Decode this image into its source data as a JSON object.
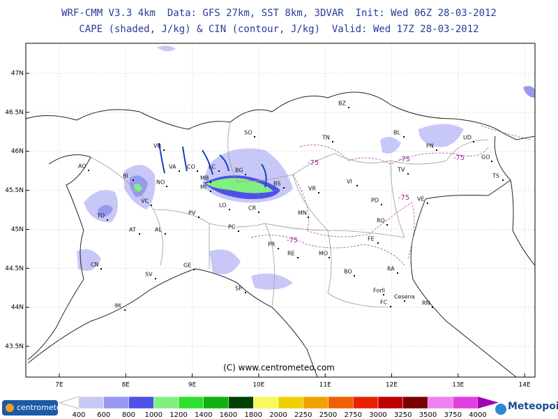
{
  "header": {
    "line1": "WRF-CMM V3.3 4km  Data: GFS 27km, SST 8km, 3DVAR  Init: Wed 06Z 28-03-2012",
    "line2": "CAPE (shaded, J/kg) & CIN (contour, J/kg)  Valid: Wed 17Z 28-03-2012"
  },
  "map": {
    "lat_ticks": [
      {
        "value": 47,
        "label": "47N"
      },
      {
        "value": 46.5,
        "label": "46.5N"
      },
      {
        "value": 46,
        "label": "46N"
      },
      {
        "value": 45.5,
        "label": "45.5N"
      },
      {
        "value": 45,
        "label": "45N"
      },
      {
        "value": 44.5,
        "label": "44.5N"
      },
      {
        "value": 44,
        "label": "44N"
      },
      {
        "value": 43.5,
        "label": "43.5N"
      }
    ],
    "lon_ticks": [
      {
        "value": 7,
        "label": "7E"
      },
      {
        "value": 8,
        "label": "8E"
      },
      {
        "value": 9,
        "label": "9E"
      },
      {
        "value": 10,
        "label": "10E"
      },
      {
        "value": 11,
        "label": "11E"
      },
      {
        "value": 12,
        "label": "12E"
      },
      {
        "value": 13,
        "label": "13E"
      },
      {
        "value": 14,
        "label": "14E"
      }
    ],
    "cities": [
      "AO",
      "BI",
      "VB",
      "VA",
      "CO",
      "LC",
      "SO",
      "BZ",
      "TN",
      "BL",
      "PN",
      "UD",
      "GO",
      "TS",
      "NO",
      "MB",
      "BG",
      "BS",
      "VR",
      "VI",
      "TV",
      "PD",
      "VE",
      "MI",
      "VC",
      "TO",
      "AT",
      "AL",
      "PV",
      "LO",
      "CR",
      "PC",
      "MN",
      "RO",
      "FE",
      "PR",
      "RE",
      "MO",
      "BO",
      "RA",
      "CN",
      "SV",
      "GE",
      "SP",
      "IM",
      "Forlì",
      "Cesena",
      "FC",
      "RN"
    ],
    "contour_labels": [
      "-75",
      "-75",
      "-75",
      "-75",
      "-75"
    ],
    "copyright": "(C) www.centrometeo.com"
  },
  "legend": {
    "levels": [
      400,
      600,
      800,
      1000,
      1200,
      1400,
      1600,
      1800,
      2000,
      2250,
      2500,
      2750,
      3000,
      3250,
      3500,
      3750,
      4000
    ],
    "colors": [
      "#c8c8f8",
      "#9898f0",
      "#5050e8",
      "#80f080",
      "#30e030",
      "#10b010",
      "#004000",
      "#f8f860",
      "#f0d000",
      "#f0a000",
      "#f06000",
      "#e82000",
      "#c00000",
      "#780000",
      "#f080f0",
      "#e040e0",
      "#a000b0"
    ]
  },
  "logos": {
    "left": "centrometeo",
    "right": "Meteopoint"
  }
}
